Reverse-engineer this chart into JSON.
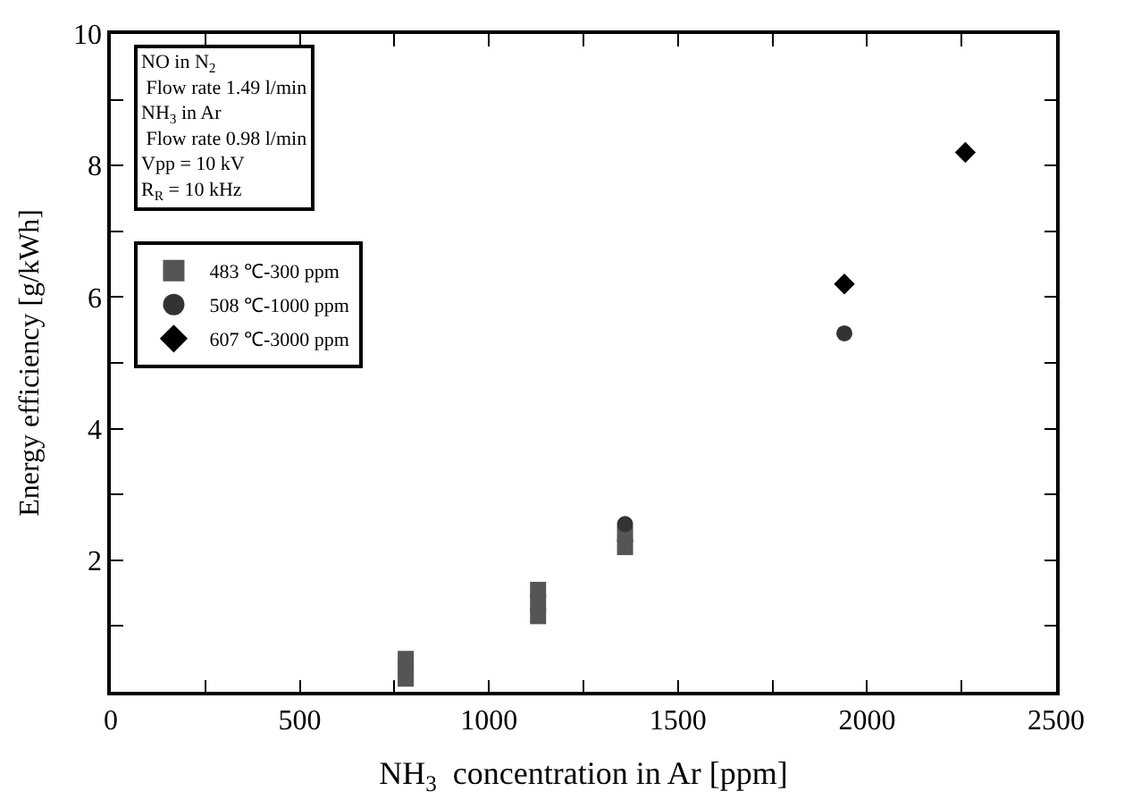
{
  "chart_data": {
    "type": "scatter",
    "xlabel": "NH$_{3}$  concentration in Ar [ppm]",
    "ylabel": "Energy efficiency [g/kWh]",
    "annotations": [
      "NO in N$_{2}$\n Flow rate 1.49 l/min\nNH$_{3}$ in Ar\n Flow rate 0.98 l/min\nVpp = 10 kV\nR$_{R}$ = 10 kHz"
    ],
    "series": [
      {
        "name": "483 ℃-300 ppm",
        "color": "#555555",
        "marker": "square",
        "x": [
          780,
          780,
          780,
          1130,
          1130,
          1130,
          1360,
          1360
        ],
        "values": [
          0.2,
          0.35,
          0.5,
          1.15,
          1.35,
          1.55,
          2.2,
          2.4
        ]
      },
      {
        "name": "508 ℃-1000 ppm",
        "color": "#333333",
        "marker": "circle",
        "x": [
          1360,
          1940
        ],
        "values": [
          2.55,
          5.45
        ]
      },
      {
        "name": "607 ℃-3000 ppm",
        "color": "#000000",
        "marker": "diamond",
        "x": [
          1940,
          2260
        ],
        "values": [
          6.2,
          8.2
        ]
      }
    ],
    "xlim": [
      0,
      2500
    ],
    "xticks": [
      0,
      {
        "value": 250,
        "label": null
      },
      500,
      {
        "value": 750,
        "label": null
      },
      1000,
      {
        "value": 1250,
        "label": null
      },
      1500,
      {
        "value": 1750,
        "label": null
      },
      2000,
      {
        "value": 2250,
        "label": null
      },
      2500
    ],
    "ylim": [
      0,
      10
    ],
    "yticks": [
      {
        "value": 1,
        "label": null
      },
      2,
      {
        "value": 3,
        "label": null
      },
      4,
      {
        "value": 5,
        "label": null
      },
      6,
      {
        "value": 7,
        "label": null
      },
      8,
      {
        "value": 9,
        "label": null
      },
      10
    ],
    "grid": false,
    "legend": "top left"
  }
}
